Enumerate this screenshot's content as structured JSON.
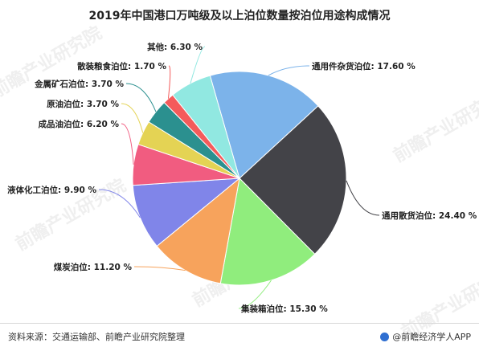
{
  "title": "2019年中国港口万吨级及以上泊位数量按泊位用途构成情况",
  "chart_data": {
    "type": "pie",
    "slices": [
      {
        "label": "通用件杂货泊位",
        "value": 17.6,
        "display": "通用件杂货泊位: 17.60 %",
        "color": "#7cb3ea"
      },
      {
        "label": "通用散货泊位",
        "value": 24.4,
        "display": "通用散货泊位: 24.40 %",
        "color": "#434348"
      },
      {
        "label": "集装箱泊位",
        "value": 15.3,
        "display": "集装箱泊位: 15.30 %",
        "color": "#90ed7d"
      },
      {
        "label": "煤炭泊位",
        "value": 11.2,
        "display": "煤炭泊位: 11.20 %",
        "color": "#f7a35c"
      },
      {
        "label": "液体化工泊位",
        "value": 9.9,
        "display": "液体化工泊位: 9.90 %",
        "color": "#8085e9"
      },
      {
        "label": "成品油泊位",
        "value": 6.2,
        "display": "成品油泊位: 6.20 %",
        "color": "#f15c80"
      },
      {
        "label": "原油泊位",
        "value": 3.7,
        "display": "原油泊位: 3.70 %",
        "color": "#e4d354"
      },
      {
        "label": "金属矿石泊位",
        "value": 3.7,
        "display": "金属矿石泊位: 3.70 %",
        "color": "#2b908f"
      },
      {
        "label": "散装粮食泊位",
        "value": 1.7,
        "display": "散装粮食泊位: 1.70 %",
        "color": "#f45b5b"
      },
      {
        "label": "其他",
        "value": 6.3,
        "display": "其他: 6.30 %",
        "color": "#91e8e1"
      }
    ]
  },
  "watermark": "前瞻产业研究院",
  "footer": {
    "source": "资料来源：交通运输部、前瞻产业研究院整理",
    "brand": "@前瞻经济学人APP"
  }
}
